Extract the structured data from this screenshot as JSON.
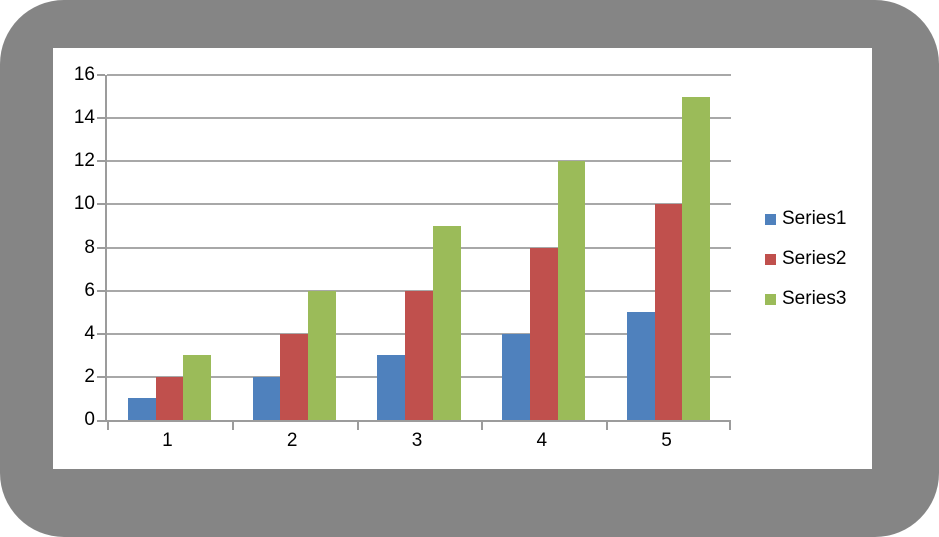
{
  "chart_data": {
    "type": "bar",
    "title": "",
    "xlabel": "",
    "ylabel": "",
    "categories": [
      "1",
      "2",
      "3",
      "4",
      "5"
    ],
    "series": [
      {
        "name": "Series1",
        "color": "#4F81BD",
        "values": [
          1,
          2,
          3,
          4,
          5
        ]
      },
      {
        "name": "Series2",
        "color": "#C0504D",
        "values": [
          2,
          4,
          6,
          8,
          10
        ]
      },
      {
        "name": "Series3",
        "color": "#9BBB59",
        "values": [
          3,
          6,
          9,
          12,
          15
        ]
      }
    ],
    "ylim": [
      0,
      16
    ],
    "yticks": [
      0,
      2,
      4,
      6,
      8,
      10,
      12,
      14,
      16
    ],
    "grid": true,
    "legend_position": "right",
    "gap_width_pct": 150
  },
  "colors": {
    "axis": "#9c9c9c",
    "gridline": "#a8a8a8",
    "text": "#000000",
    "frame_gray": "#8b8b8b",
    "chart_background": "#ffffff"
  }
}
